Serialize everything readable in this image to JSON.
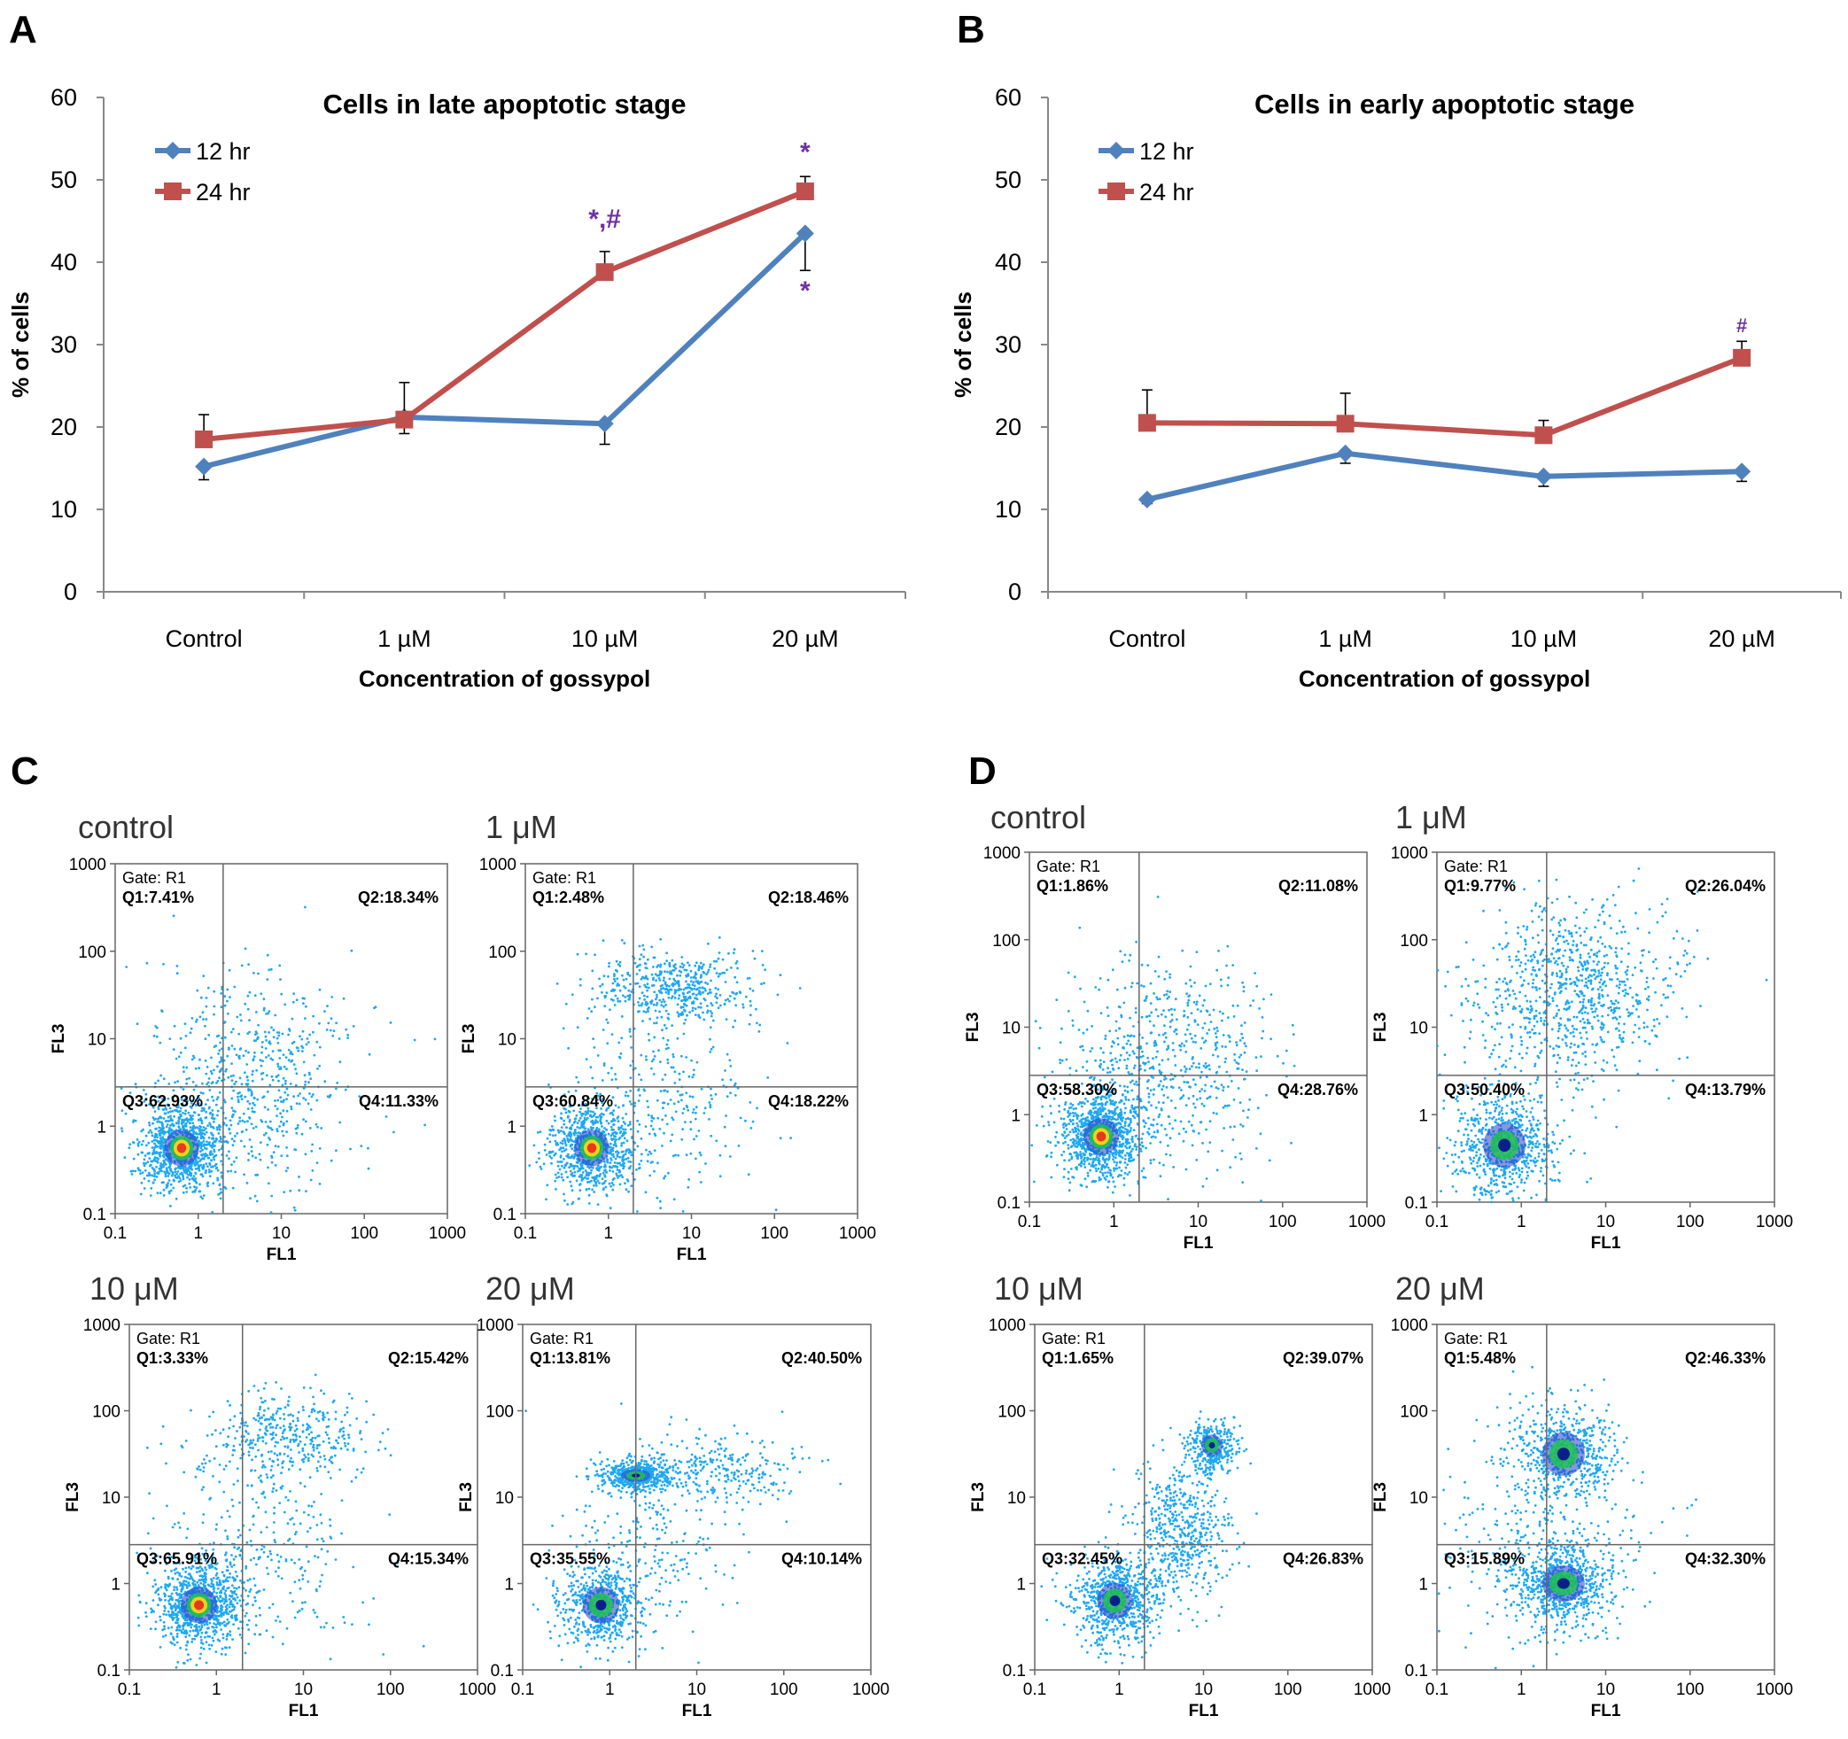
{
  "panels": {
    "A": "A",
    "B": "B",
    "C": "C",
    "D": "D"
  },
  "colors": {
    "series_12hr": "#4f81bd",
    "series_24hr": "#c0504d",
    "significance": "#7030a0"
  },
  "chart_data": [
    {
      "panel": "A",
      "type": "line",
      "title": "Cells in late apoptotic stage",
      "xlabel": "Concentration of gossypol",
      "ylabel": "% of cells",
      "categories": [
        "Control",
        "1 µM",
        "10 µM",
        "20 µM"
      ],
      "ylim": [
        0,
        60
      ],
      "yticks": [
        "0",
        "10",
        "20",
        "30",
        "40",
        "50",
        "60"
      ],
      "grid": false,
      "legend": "top-left",
      "series": [
        {
          "name": "12 hr",
          "values": [
            15.2,
            21.2,
            20.4,
            43.5
          ],
          "errors": [
            1.6,
            2.0,
            2.5,
            4.5
          ],
          "err_dir": [
            -1,
            -1,
            -1,
            -1
          ],
          "marker": "diamond",
          "color": "#4f81bd"
        },
        {
          "name": "24 hr",
          "values": [
            18.5,
            20.9,
            38.8,
            48.6
          ],
          "errors": [
            3.0,
            4.5,
            2.5,
            1.8
          ],
          "err_dir": [
            1,
            1,
            1,
            1
          ],
          "marker": "square",
          "color": "#c0504d"
        }
      ],
      "annotations": [
        {
          "text": "*,#",
          "category": "10 µM",
          "value": 44.2
        },
        {
          "text": "*",
          "category": "20 µM",
          "value": 52.3
        },
        {
          "text": "*",
          "category": "20 µM",
          "value": 35.5
        }
      ]
    },
    {
      "panel": "B",
      "type": "line",
      "title": "Cells in early apoptotic stage",
      "xlabel": "Concentration of gossypol",
      "ylabel": "% of cells",
      "categories": [
        "Control",
        "1 µM",
        "10 µM",
        "20 µM"
      ],
      "ylim": [
        0,
        60
      ],
      "yticks": [
        "0",
        "10",
        "20",
        "30",
        "40",
        "50",
        "60"
      ],
      "grid": false,
      "legend": "top-left",
      "series": [
        {
          "name": "12 hr",
          "values": [
            11.2,
            16.8,
            14.0,
            14.6
          ],
          "errors": [
            0.5,
            1.2,
            1.2,
            1.2
          ],
          "err_dir": [
            -1,
            -1,
            -1,
            -1
          ],
          "marker": "diamond",
          "color": "#4f81bd"
        },
        {
          "name": "24 hr",
          "values": [
            20.5,
            20.4,
            19.0,
            28.4
          ],
          "errors": [
            4.0,
            3.7,
            1.8,
            2.0
          ],
          "err_dir": [
            1,
            1,
            1,
            1
          ],
          "marker": "square",
          "color": "#c0504d"
        }
      ],
      "annotations": [
        {
          "text": "#",
          "category": "20 µM",
          "value": 31.5
        }
      ]
    }
  ],
  "flow_panels": [
    {
      "panel": "C",
      "plots": [
        {
          "condition": "control",
          "gate": "Gate: R1",
          "q1": "Q1:7.41%",
          "q2": "Q2:18.34%",
          "q3": "Q3:62.93%",
          "q4": "Q4:11.33%"
        },
        {
          "condition": "1 μM",
          "gate": "Gate: R1",
          "q1": "Q1:2.48%",
          "q2": "Q2:18.46%",
          "q3": "Q3:60.84%",
          "q4": "Q4:18.22%"
        },
        {
          "condition": "10 μM",
          "gate": "Gate: R1",
          "q1": "Q1:3.33%",
          "q2": "Q2:15.42%",
          "q3": "Q3:65.91%",
          "q4": "Q4:15.34%"
        },
        {
          "condition": "20 μM",
          "gate": "Gate: R1",
          "q1": "Q1:13.81%",
          "q2": "Q2:40.50%",
          "q3": "Q3:35.55%",
          "q4": "Q4:10.14%"
        }
      ]
    },
    {
      "panel": "D",
      "plots": [
        {
          "condition": "control",
          "gate": "Gate: R1",
          "q1": "Q1:1.86%",
          "q2": "Q2:11.08%",
          "q3": "Q3:58.30%",
          "q4": "Q4:28.76%"
        },
        {
          "condition": "1 μM",
          "gate": "Gate: R1",
          "q1": "Q1:9.77%",
          "q2": "Q2:26.04%",
          "q3": "Q3:50.40%",
          "q4": "Q4:13.79%"
        },
        {
          "condition": "10 μM",
          "gate": "Gate: R1",
          "q1": "Q1:1.65%",
          "q2": "Q2:39.07%",
          "q3": "Q3:32.45%",
          "q4": "Q4:26.83%"
        },
        {
          "condition": "20 μM",
          "gate": "Gate: R1",
          "q1": "Q1:5.48%",
          "q2": "Q2:46.33%",
          "q3": "Q3:15.89%",
          "q4": "Q4:32.30%"
        }
      ]
    }
  ],
  "flow_axes": {
    "x_label": "FL1",
    "y_label": "FL3",
    "ticks": [
      "0.1",
      "1",
      "10",
      "100",
      "1000"
    ]
  }
}
